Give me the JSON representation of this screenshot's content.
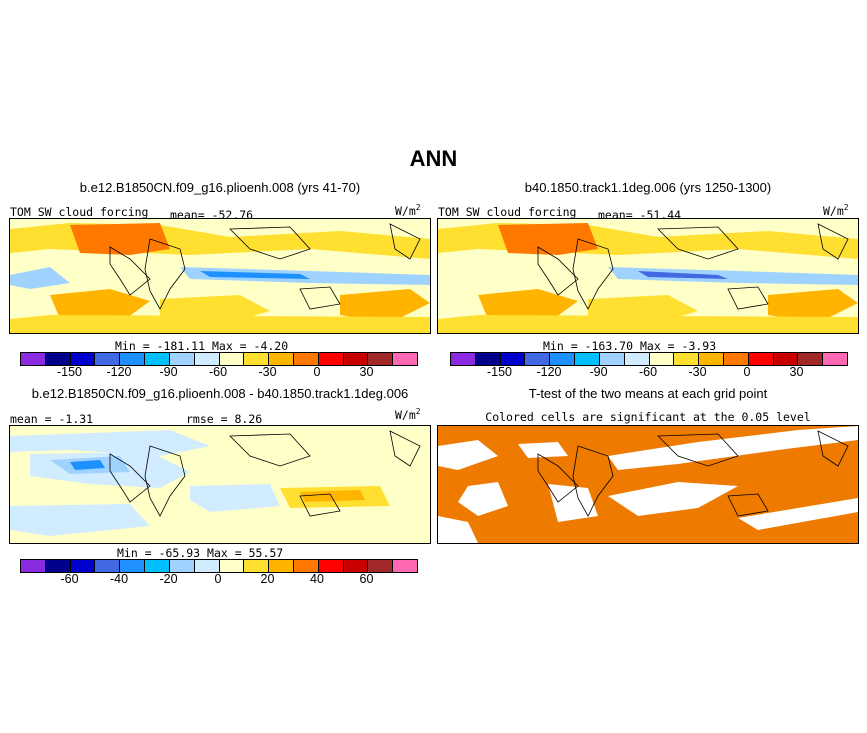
{
  "figure_title": "ANN",
  "panels": {
    "top_left": {
      "title": "b.e12.B1850CN.f09_g16.plioenh.008 (yrs 41-70)",
      "variable": "TOM SW cloud forcing",
      "mean_label": "mean=",
      "mean": "-52.76",
      "units": "W/m",
      "units_exp": "2",
      "min_label": "Min =",
      "min": "-181.11",
      "max_label": "Max =",
      "max": "-4.20"
    },
    "top_right": {
      "title": "b40.1850.track1.1deg.006 (yrs 1250-1300)",
      "variable": "TOM SW cloud forcing",
      "mean_label": "mean=",
      "mean": "-51.44",
      "units": "W/m",
      "units_exp": "2",
      "min_label": "Min =",
      "min": "-163.70",
      "max_label": "Max =",
      "max": "-3.93"
    },
    "bottom_left": {
      "title": "b.e12.B1850CN.f09_g16.plioenh.008 - b40.1850.track1.1deg.006",
      "mean_label": "mean =",
      "mean": "-1.31",
      "rmse_label": "rmse =",
      "rmse": "8.26",
      "units": "W/m",
      "units_exp": "2",
      "min_label": "Min =",
      "min": "-65.93",
      "max_label": "Max =",
      "max": "55.57"
    },
    "bottom_right": {
      "title": "T-test of the two means at each grid point",
      "subtitle": "Colored cells are significant at the 0.05 level"
    }
  },
  "colorbars": {
    "absolute": {
      "colors": [
        "#8a2be2",
        "#00008b",
        "#0000cd",
        "#4169e1",
        "#1e90ff",
        "#00bfff",
        "#a0d2ff",
        "#d2ecff",
        "#ffffc8",
        "#ffe030",
        "#ffb400",
        "#ff7800",
        "#ff0000",
        "#c80000",
        "#a02828",
        "#ff69b4"
      ],
      "labels": [
        "-150",
        "-120",
        "-90",
        "-60",
        "-30",
        "0",
        "30"
      ]
    },
    "difference": {
      "colors": [
        "#8a2be2",
        "#00008b",
        "#0000cd",
        "#4169e1",
        "#1e90ff",
        "#00bfff",
        "#a0d2ff",
        "#d2ecff",
        "#ffffc8",
        "#ffe030",
        "#ffb400",
        "#ff7800",
        "#ff0000",
        "#c80000",
        "#a02828",
        "#ff69b4"
      ],
      "labels": [
        "-60",
        "-40",
        "-20",
        "0",
        "20",
        "40",
        "60"
      ]
    }
  },
  "chart_data": [
    {
      "type": "heatmap",
      "title": "b.e12.B1850CN.f09_g16.plioenh.008 (yrs 41-70)",
      "variable": "TOM SW cloud forcing",
      "units": "W/m2",
      "mean": -52.76,
      "min": -181.11,
      "max": -4.2,
      "levels": [
        -165,
        -150,
        -135,
        -120,
        -105,
        -90,
        -75,
        -60,
        -45,
        -30,
        -15,
        0,
        15,
        30,
        45
      ]
    },
    {
      "type": "heatmap",
      "title": "b40.1850.track1.1deg.006 (yrs 1250-1300)",
      "variable": "TOM SW cloud forcing",
      "units": "W/m2",
      "mean": -51.44,
      "min": -163.7,
      "max": -3.93,
      "levels": [
        -165,
        -150,
        -135,
        -120,
        -105,
        -90,
        -75,
        -60,
        -45,
        -30,
        -15,
        0,
        15,
        30,
        45
      ]
    },
    {
      "type": "heatmap",
      "title": "b.e12.B1850CN.f09_g16.plioenh.008 - b40.1850.track1.1deg.006",
      "units": "W/m2",
      "mean": -1.31,
      "rmse": 8.26,
      "min": -65.93,
      "max": 55.57,
      "levels": [
        -70,
        -60,
        -50,
        -40,
        -30,
        -20,
        -10,
        0,
        10,
        20,
        30,
        40,
        50,
        60,
        70
      ]
    },
    {
      "type": "heatmap",
      "title": "T-test of the two means at each grid point",
      "subtitle": "Colored cells are significant at the 0.05 level",
      "significance_level": 0.05
    }
  ]
}
